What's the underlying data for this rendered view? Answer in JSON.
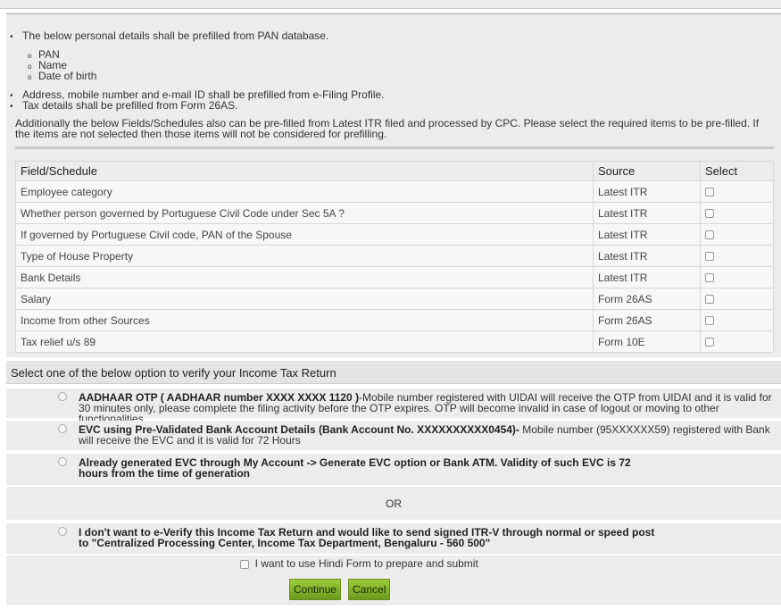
{
  "intro": {
    "bullet1": "The below personal details shall be prefilled from PAN database.",
    "sub_items": [
      "PAN",
      "Name",
      "Date of birth"
    ],
    "bullet2": "Address, mobile number and e-mail ID shall be prefilled from e-Filing Profile.",
    "bullet3": "Tax details shall be prefilled from Form 26AS.",
    "paragraph": "Additionally the below Fields/Schedules also can be pre-filled from Latest ITR filed and processed by CPC. Please select the required items to be pre-filled. If the items are not selected then those items will not be considered for prefilling."
  },
  "table": {
    "headers": [
      "Field/Schedule",
      "Source",
      "Select"
    ],
    "rows": [
      {
        "field": "Employee category",
        "source": "Latest ITR",
        "checked": false
      },
      {
        "field": "Whether person governed by Portuguese Civil Code under Sec 5A ?",
        "source": "Latest ITR",
        "checked": false
      },
      {
        "field": "If governed by Portuguese Civil code, PAN of the Spouse",
        "source": "Latest ITR",
        "checked": false
      },
      {
        "field": "Type of House Property",
        "source": "Latest ITR",
        "checked": false
      },
      {
        "field": "Bank Details",
        "source": "Latest ITR",
        "checked": false
      },
      {
        "field": "Salary",
        "source": "Form 26AS",
        "checked": false
      },
      {
        "field": "Income from other Sources",
        "source": "Form 26AS",
        "checked": false
      },
      {
        "field": "Tax relief u/s 89",
        "source": "Form 10E",
        "checked": false
      }
    ]
  },
  "verify": {
    "heading": "Select one of the below option to verify your Income Tax Return",
    "options": [
      {
        "bold": "AADHAAR OTP ( AADHAAR number XXXX XXXX 1120 )",
        "text": "-Mobile number registered with UIDAI will receive the OTP from UIDAI and it is valid for 30 minutes only, please complete the filing activity before the OTP expires. OTP will become invalid in case of logout or moving to other functionalities"
      },
      {
        "bold": "EVC using Pre-Validated Bank Account Details (Bank Account No. XXXXXXXXXX0454)-",
        "text": " Mobile number (95XXXXXX59) registered with Bank will receive the EVC and it is valid for 72 Hours"
      },
      {
        "bold": "Already generated EVC through My Account -> Generate EVC option or Bank ATM. Validity of such EVC is 72 hours from the time of generation",
        "text": ""
      },
      {
        "bold": "I don't want to e-Verify this Income Tax Return and would like to send signed ITR-V through normal or speed post to \"Centralized Processing Center, Income Tax Department, Bengaluru - 560 500\"",
        "text": ""
      }
    ],
    "or_label": "OR"
  },
  "hindi_label": "I want to use Hindi Form to prepare and submit",
  "buttons": {
    "continue": "Continue",
    "cancel": "Cancel"
  },
  "colors": {
    "button_green": "#8cbf34",
    "panel_bg": "#ececec"
  }
}
